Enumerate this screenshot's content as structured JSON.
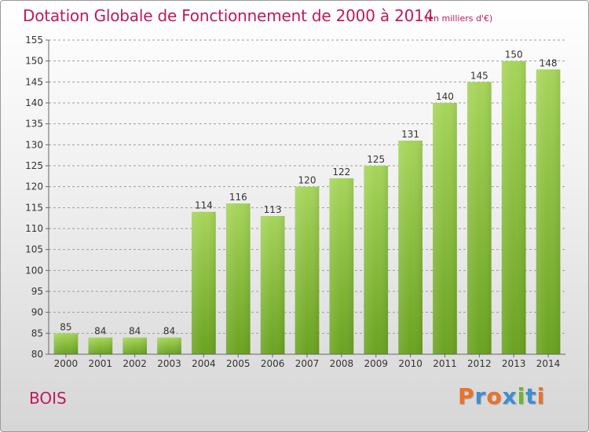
{
  "header": {
    "title": "Dotation Globale de Fonctionnement de 2000 à 2014",
    "subtitle": "(en milliers d'€)"
  },
  "footer": {
    "commune": "BOIS",
    "brand": "Proxiti",
    "brand_colors": [
      "#e8732a",
      "#3d8fd1",
      "#e8732a",
      "#3d8fd1",
      "#6bb52c",
      "#3d8fd1",
      "#e8732a"
    ]
  },
  "colors": {
    "accent": "#c0185e",
    "bar_light": "#a6d55a",
    "bar_dark": "#6aa220",
    "grid": "#9e9e9e"
  },
  "chart_data": {
    "type": "bar",
    "categories": [
      "2000",
      "2001",
      "2002",
      "2003",
      "2004",
      "2005",
      "2006",
      "2007",
      "2008",
      "2009",
      "2010",
      "2011",
      "2012",
      "2013",
      "2014"
    ],
    "values": [
      85,
      84,
      84,
      84,
      114,
      116,
      113,
      120,
      122,
      125,
      131,
      140,
      145,
      150,
      148
    ],
    "ylim": [
      80,
      155
    ],
    "yticks": [
      80,
      85,
      90,
      95,
      100,
      105,
      110,
      115,
      120,
      125,
      130,
      135,
      140,
      145,
      150,
      155
    ],
    "grid": true,
    "title": "Dotation Globale de Fonctionnement de 2000 à 2014",
    "xlabel": "",
    "ylabel": ""
  }
}
